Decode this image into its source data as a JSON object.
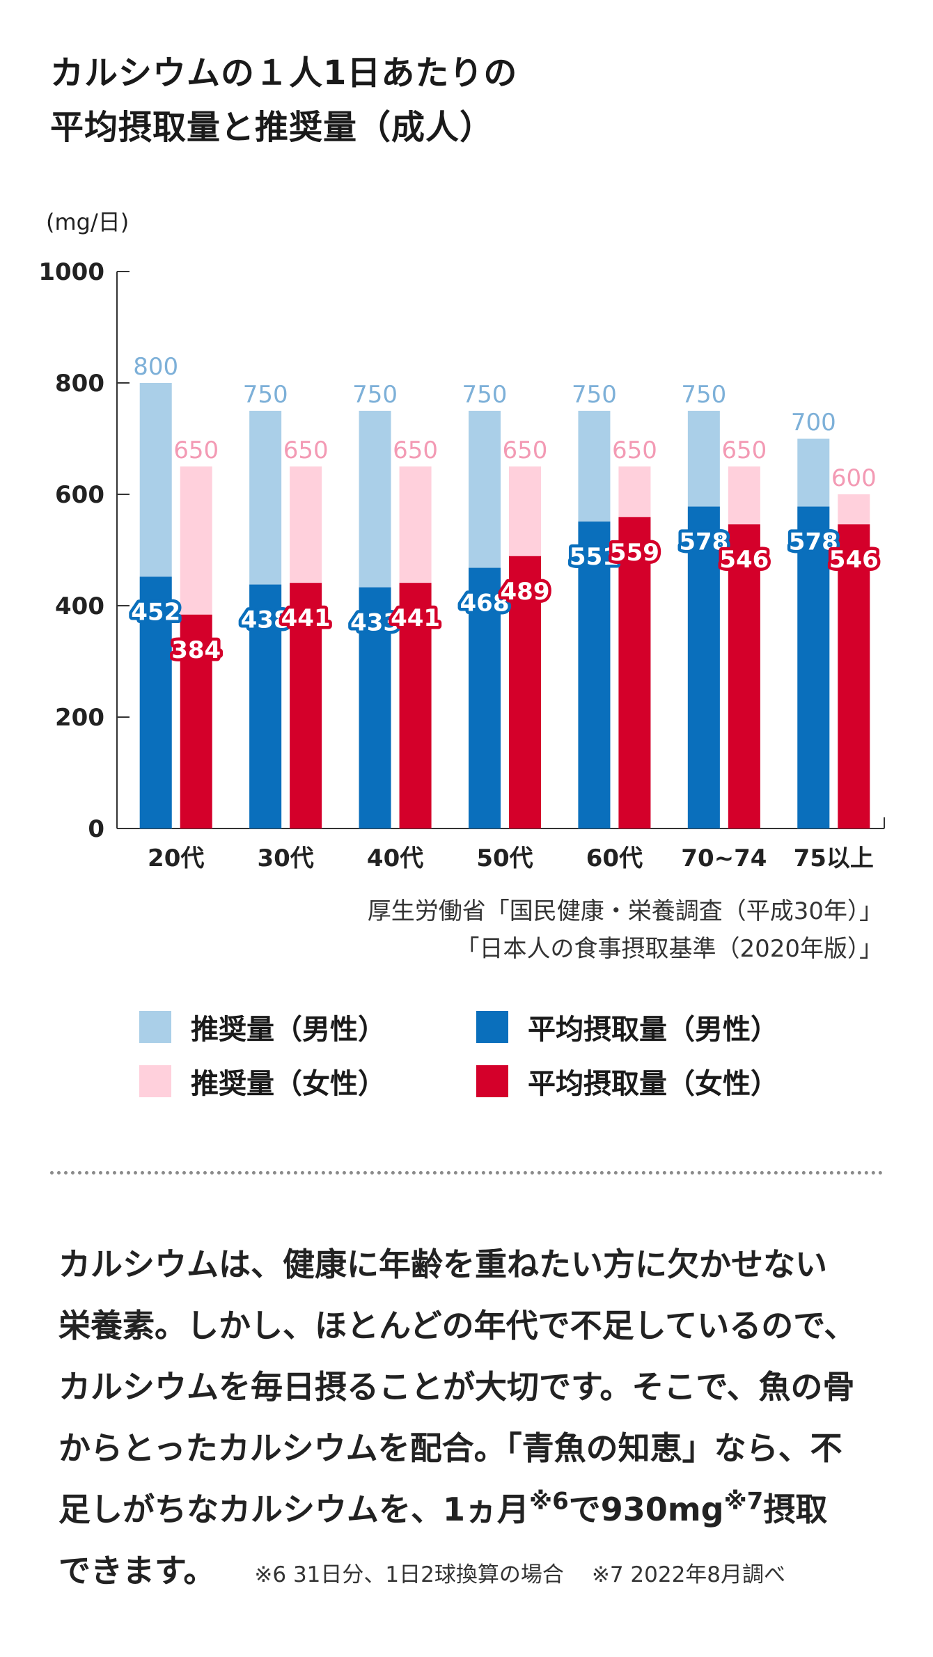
{
  "title_lines": [
    "カルシウムの１人1日あたりの",
    "平均摂取量と推奨量（成人）"
  ],
  "colors": {
    "rec_male": "#aacfe8",
    "rec_female": "#ffd0dc",
    "avg_male": "#0a6fbc",
    "avg_female": "#d4002a",
    "axis": "#333333"
  },
  "chart_data": {
    "type": "bar",
    "ylabel": "(mg/日)",
    "ylim": [
      0,
      1000
    ],
    "yticks": [
      "0",
      "200",
      "400",
      "600",
      "800",
      "1000"
    ],
    "categories": [
      "20代",
      "30代",
      "40代",
      "50代",
      "60代",
      "70~74",
      "75以上"
    ],
    "series": [
      {
        "name": "推奨量（男性）",
        "values": [
          800,
          750,
          750,
          750,
          750,
          750,
          700
        ]
      },
      {
        "name": "推奨量（女性）",
        "values": [
          650,
          650,
          650,
          650,
          650,
          650,
          600
        ]
      },
      {
        "name": "平均摂取量（男性）",
        "values": [
          452,
          438,
          433,
          468,
          551,
          578,
          578
        ]
      },
      {
        "name": "平均摂取量（女性）",
        "values": [
          384,
          441,
          441,
          489,
          559,
          546,
          546
        ]
      }
    ],
    "grid": false,
    "legend": "bottom"
  },
  "source_lines": [
    "厚生労働省「国民健康・栄養調査（平成30年）」",
    "「日本人の食事摂取基準（2020年版）」"
  ],
  "legend": {
    "rec_male": "推奨量（男性）",
    "avg_male": "平均摂取量（男性）",
    "rec_female": "推奨量（女性）",
    "avg_female": "平均摂取量（女性）"
  },
  "body": {
    "line1": "カルシウムは、健康に年齢を重ねたい方に欠かせない",
    "line2": "栄養素。しかし、ほとんどの年代で不足しているので、",
    "line3": "カルシウムを毎日摂ることが大切です。そこで、魚の骨",
    "line4": "からとったカルシウムを配合。「青魚の知恵」なら、不",
    "line5_a": "足しがちなカルシウムを、1ヵ月",
    "line5_sup1": "※6",
    "line5_b": "で930mg",
    "line5_sup2": "※7",
    "line5_c": "摂取",
    "line6": "できます。",
    "footnote1": "※6  31日分、1日2球換算の場合",
    "footnote2": "※7  2022年8月調べ"
  }
}
